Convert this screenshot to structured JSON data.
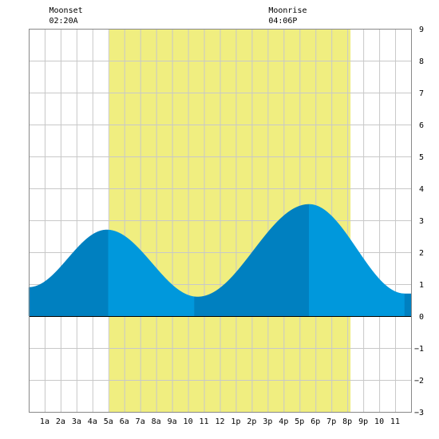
{
  "chart_data": {
    "type": "area",
    "title": "",
    "xlabel": "",
    "ylabel": "",
    "xlim": [
      0,
      24
    ],
    "ylim": [
      -3,
      9
    ],
    "grid": true,
    "daylight": {
      "start": 5.05,
      "end": 20.2,
      "color": "#f0ee80"
    },
    "annotations": [
      {
        "name": "Moonset",
        "time": "02:20A",
        "x": 2.33
      },
      {
        "name": "Moonrise",
        "time": "04:06P",
        "x": 16.1
      }
    ],
    "x_ticks": [
      {
        "x": 1,
        "label": "1a"
      },
      {
        "x": 2,
        "label": "2a"
      },
      {
        "x": 3,
        "label": "3a"
      },
      {
        "x": 4,
        "label": "4a"
      },
      {
        "x": 5,
        "label": "5a"
      },
      {
        "x": 6,
        "label": "6a"
      },
      {
        "x": 7,
        "label": "7a"
      },
      {
        "x": 8,
        "label": "8a"
      },
      {
        "x": 9,
        "label": "9a"
      },
      {
        "x": 10,
        "label": "10"
      },
      {
        "x": 11,
        "label": "11"
      },
      {
        "x": 12,
        "label": "12"
      },
      {
        "x": 13,
        "label": "1p"
      },
      {
        "x": 14,
        "label": "2p"
      },
      {
        "x": 15,
        "label": "3p"
      },
      {
        "x": 16,
        "label": "4p"
      },
      {
        "x": 17,
        "label": "5p"
      },
      {
        "x": 18,
        "label": "6p"
      },
      {
        "x": 19,
        "label": "7p"
      },
      {
        "x": 20,
        "label": "8p"
      },
      {
        "x": 21,
        "label": "9p"
      },
      {
        "x": 22,
        "label": "10"
      },
      {
        "x": 23,
        "label": "11"
      }
    ],
    "y_ticks": [
      9,
      8,
      7,
      6,
      5,
      4,
      3,
      2,
      1,
      0,
      -1,
      -2,
      -3
    ],
    "tide_extrema": [
      {
        "x": 0,
        "y": 0.9
      },
      {
        "x": 4.9,
        "y": 2.7
      },
      {
        "x": 10.6,
        "y": 0.6
      },
      {
        "x": 17.6,
        "y": 3.5
      },
      {
        "x": 23.6,
        "y": 0.7
      }
    ],
    "x_end": 24,
    "shade_bands": [
      {
        "start": 0,
        "end": 5.0,
        "color": "#0080c0"
      },
      {
        "start": 5.0,
        "end": 10.4,
        "color": "#0098dc"
      },
      {
        "start": 10.4,
        "end": 17.6,
        "color": "#0080c0"
      },
      {
        "start": 17.6,
        "end": 23.6,
        "color": "#0098dc"
      },
      {
        "start": 23.6,
        "end": 24,
        "color": "#0080c0"
      }
    ],
    "colors": {
      "grid": "#c8c8c8",
      "zero_line": "#000000",
      "frame": "#888888"
    }
  }
}
